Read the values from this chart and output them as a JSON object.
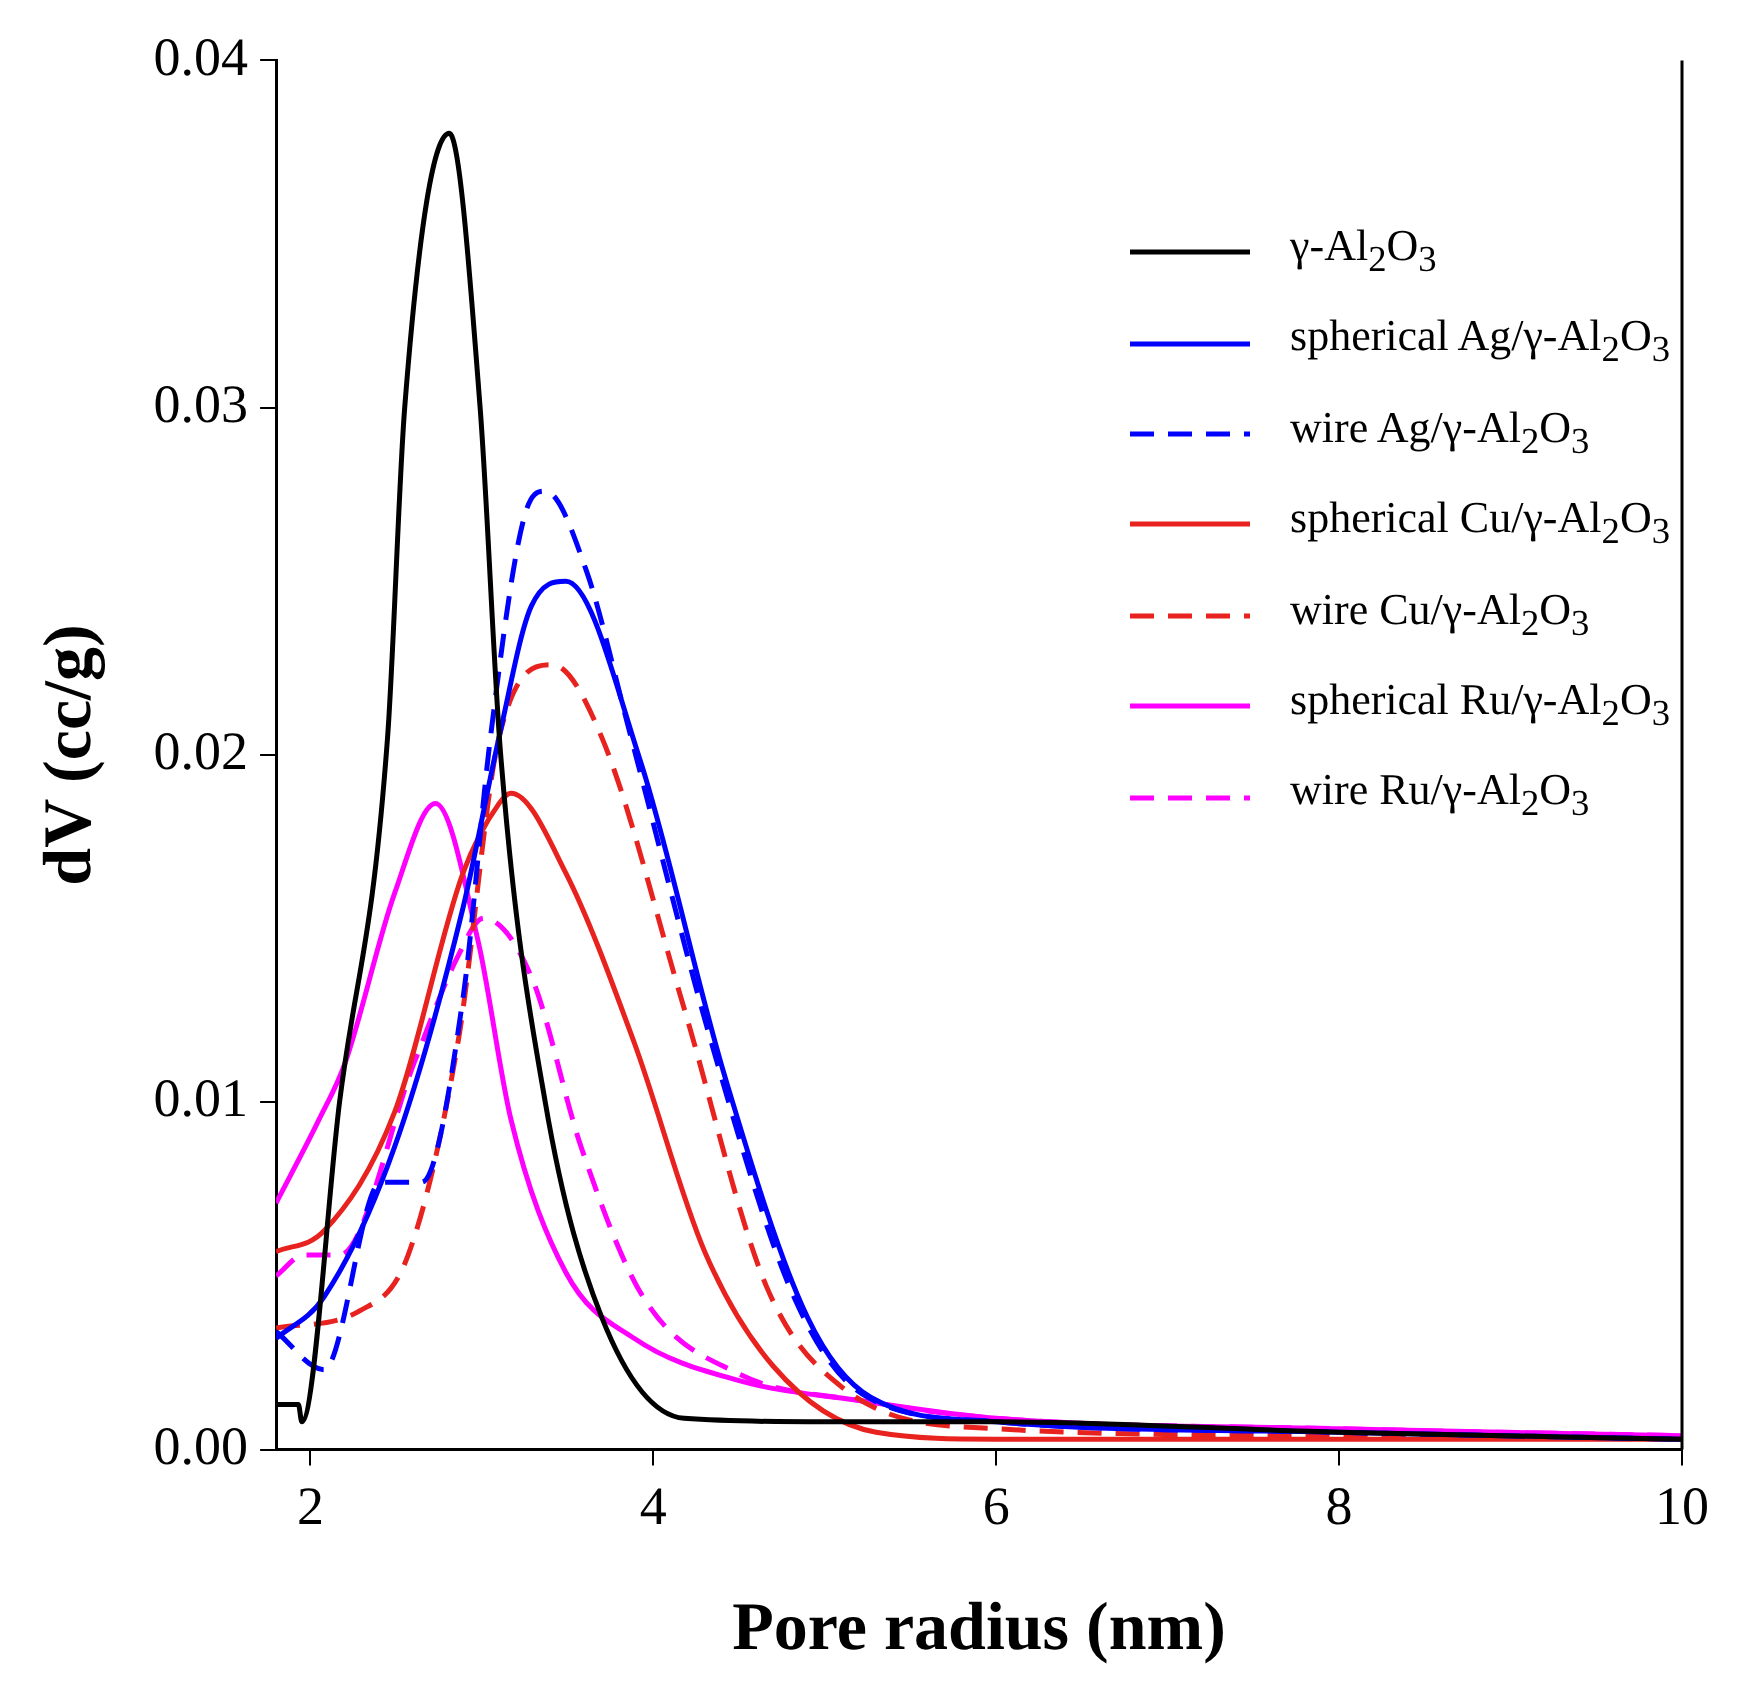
{
  "chart_data": {
    "type": "line",
    "xlabel": "Pore radius (nm)",
    "ylabel": "dV (cc/g)",
    "xlim": [
      1.8,
      10
    ],
    "xticks": [
      2,
      4,
      6,
      8,
      10
    ],
    "ylim": [
      0,
      0.04
    ],
    "yticks": [
      {
        "value": 0,
        "label": "0.00"
      },
      {
        "value": 0.01,
        "label": "0.01"
      },
      {
        "value": 0.02,
        "label": "0.02"
      },
      {
        "value": 0.03,
        "label": "0.03"
      },
      {
        "value": 0.04,
        "label": "0.04"
      }
    ],
    "grid": false,
    "legend": "top right",
    "marker": "none",
    "series": [
      {
        "name": "γ-Al$_{2}$O$_{3}$",
        "color": "#000000",
        "line_style": "solid",
        "x": [
          1.8,
          1.93,
          1.95,
          2.17,
          2.45,
          2.55,
          2.81,
          2.99,
          3.11,
          3.37,
          3.7,
          4.18,
          5,
          6,
          8,
          10
        ],
        "values": [
          0.0013,
          0.0013,
          0.0008,
          0.01,
          0.0205,
          0.03,
          0.0379,
          0.03,
          0.02,
          0.01,
          0.0038,
          0.0009,
          0.0008,
          0.0008,
          0.0005,
          0.0003
        ]
      },
      {
        "name": "spherical Ag/γ-Al$_{2}$O$_{3}$",
        "color": "#0000ff",
        "line_style": "solid",
        "x": [
          1.8,
          2.08,
          2.49,
          2.89,
          3.1,
          3.29,
          3.49,
          3.92,
          4.42,
          4.9,
          5.27,
          6,
          8,
          10
        ],
        "values": [
          0.0032,
          0.0044,
          0.0087,
          0.0156,
          0.0205,
          0.0243,
          0.025,
          0.0199,
          0.0107,
          0.0038,
          0.0015,
          0.0008,
          0.0005,
          0.0003
        ]
      },
      {
        "name": "wire Ag/γ-Al$_{2}$O$_{3}$",
        "color": "#0000ff",
        "line_style": "dashed",
        "x": [
          1.8,
          2.08,
          2.41,
          2.65,
          2.89,
          3.05,
          3.25,
          3.37,
          3.61,
          3.86,
          4.34,
          4.82,
          5.22,
          6,
          8,
          10
        ],
        "values": [
          0.0034,
          0.0023,
          0.0077,
          0.0077,
          0.013,
          0.0205,
          0.0269,
          0.0276,
          0.0253,
          0.0207,
          0.0117,
          0.0044,
          0.0016,
          0.0008,
          0.0005,
          0.0003
        ]
      },
      {
        "name": "spherical Cu/γ-Al$_{2}$O$_{3}$",
        "color": "#e8221e",
        "line_style": "solid",
        "x": [
          1.8,
          2.08,
          2.49,
          2.89,
          3.1,
          3.17,
          3.49,
          3.89,
          4.3,
          4.7,
          5.3,
          6,
          8,
          10
        ],
        "values": [
          0.0057,
          0.0063,
          0.0097,
          0.0166,
          0.0186,
          0.0189,
          0.0166,
          0.0117,
          0.0057,
          0.0024,
          0.0005,
          0.0003,
          0.0003,
          0.0003
        ]
      },
      {
        "name": "wire Cu/γ-Al$_{2}$O$_{3}$",
        "color": "#e8221e",
        "line_style": "dashed",
        "x": [
          1.8,
          2.29,
          2.57,
          2.86,
          3.1,
          3.41,
          3.7,
          4.18,
          4.66,
          5.1,
          6,
          8,
          10
        ],
        "values": [
          0.0035,
          0.004,
          0.0056,
          0.0117,
          0.0205,
          0.0226,
          0.0205,
          0.0127,
          0.0047,
          0.0018,
          0.0006,
          0.0004,
          0.0003
        ]
      },
      {
        "name": "spherical Ru/γ-Al$_{2}$O$_{3}$",
        "color": "#ff00ff",
        "line_style": "solid",
        "x": [
          1.8,
          2.05,
          2.2,
          2.49,
          2.73,
          2.98,
          3.17,
          3.49,
          3.89,
          4.49,
          5.22,
          6,
          8,
          10
        ],
        "values": [
          0.0071,
          0.0095,
          0.0111,
          0.016,
          0.0186,
          0.0146,
          0.0095,
          0.0051,
          0.0032,
          0.002,
          0.0014,
          0.0009,
          0.0006,
          0.0004
        ]
      },
      {
        "name": "wire Ru/γ-Al$_{2}$O$_{3}$",
        "color": "#ff00ff",
        "line_style": "dashed",
        "x": [
          1.8,
          1.96,
          2.17,
          2.61,
          2.86,
          3.01,
          3.29,
          3.58,
          3.94,
          4.49,
          5.22,
          6,
          8,
          10
        ],
        "values": [
          0.005,
          0.0056,
          0.0056,
          0.0112,
          0.0142,
          0.0153,
          0.0136,
          0.0087,
          0.0044,
          0.0022,
          0.0014,
          0.0009,
          0.0006,
          0.0004
        ]
      }
    ]
  }
}
